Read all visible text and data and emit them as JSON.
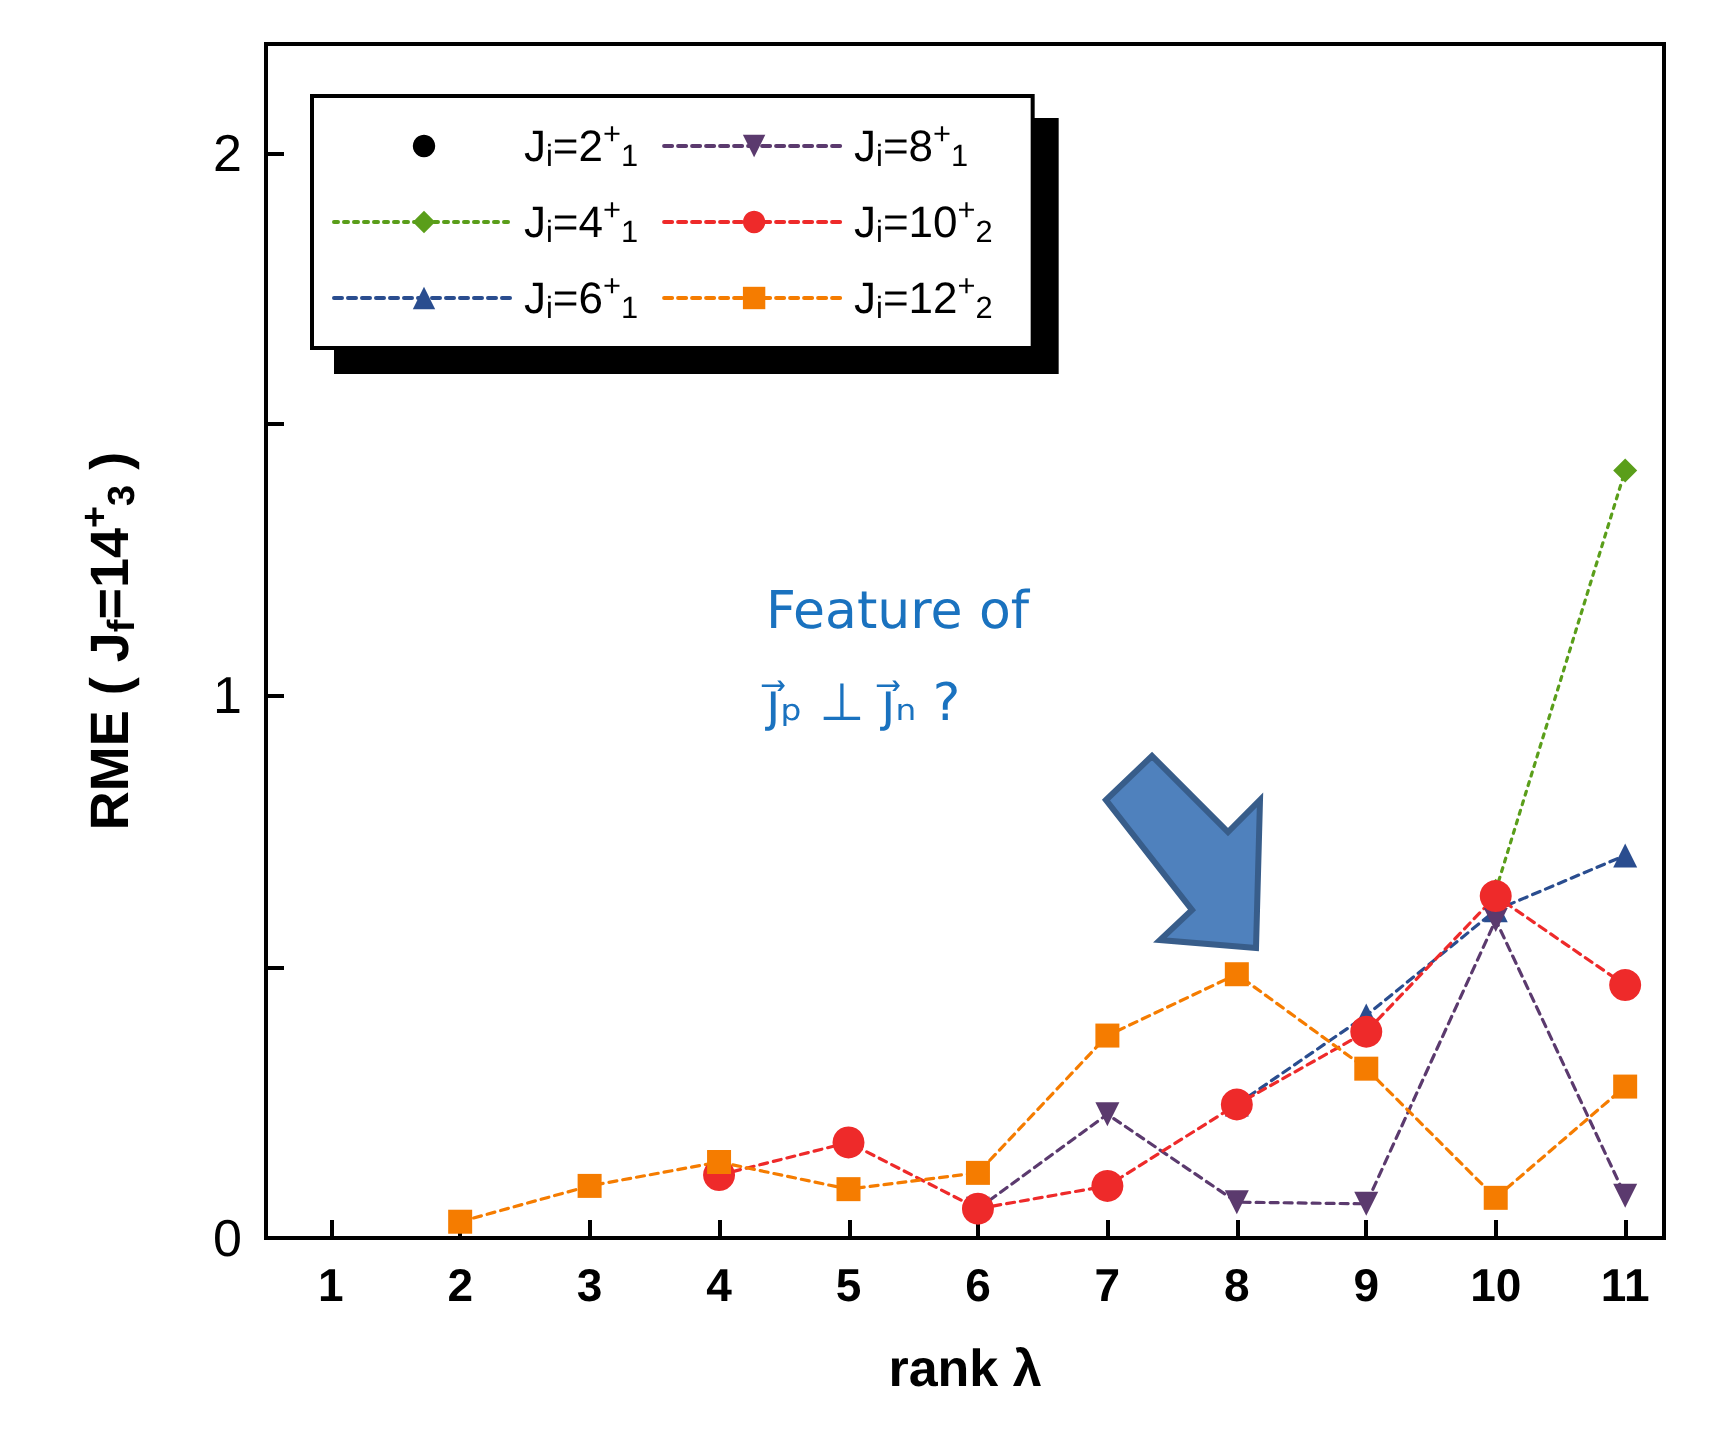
{
  "chart_data": {
    "type": "line",
    "xlabel": "rank λ",
    "ylabel": "RME ( J$_{f}$=14$^{+}$$_{3}$ )",
    "xlim": [
      0.5,
      11.3
    ],
    "xticks": [
      1,
      2,
      3,
      4,
      5,
      6,
      7,
      8,
      9,
      10,
      11
    ],
    "ylim": [
      0,
      2.2
    ],
    "yticks": [
      0,
      {
        "value": 0.5,
        "label": null
      },
      1,
      {
        "value": 1.5,
        "label": null
      },
      2
    ],
    "grid": false,
    "legend": "top left",
    "line_style": "dashed",
    "x": [
      2,
      3,
      4,
      5,
      6,
      7,
      8,
      9,
      10,
      11
    ],
    "series": [
      {
        "name": "J$_{i}$=2$^{+}$$_{1}$",
        "color": "#000000",
        "marker": "circle",
        "line_style": "none",
        "values": [
          null,
          null,
          null,
          null,
          null,
          null,
          null,
          null,
          null,
          null
        ]
      },
      {
        "name": "J$_{i}$=4$^{+}$$_{1}$",
        "color": "#5a9e1a",
        "marker": "diamond",
        "line_style": "dotted",
        "values": [
          null,
          null,
          null,
          null,
          null,
          null,
          null,
          null,
          0.64,
          1.414
        ]
      },
      {
        "name": "J$_{i}$=6$^{+}$$_{1}$",
        "color": "#2a4d8f",
        "marker": "triangle",
        "values": [
          null,
          null,
          null,
          null,
          null,
          null,
          0.246,
          0.41,
          0.604,
          0.705
        ]
      },
      {
        "name": "J$_{i}$=8$^{+}$$_{1}$",
        "color": "#5b3a6e",
        "marker": "triangle-down",
        "values": [
          null,
          null,
          null,
          null,
          0.054,
          0.228,
          0.066,
          0.063,
          0.586,
          0.078
        ]
      },
      {
        "name": "J$_{i}$=10$^{+}$$_{2}$",
        "color": "#ee2a2a",
        "marker": "circle",
        "values": [
          null,
          null,
          0.116,
          0.176,
          0.054,
          0.096,
          0.246,
          0.38,
          0.63,
          0.466
        ]
      },
      {
        "name": "J$_{i}$=12$^{+}$$_{2}$",
        "color": "#f57c00",
        "marker": "square",
        "values": [
          0.03,
          0.096,
          0.14,
          0.09,
          0.12,
          0.373,
          0.486,
          0.312,
          0.074,
          0.279
        ]
      }
    ],
    "annotations": [
      "Feature of\nj⃗ₚ ⊥ j⃗ₙ ?"
    ]
  }
}
